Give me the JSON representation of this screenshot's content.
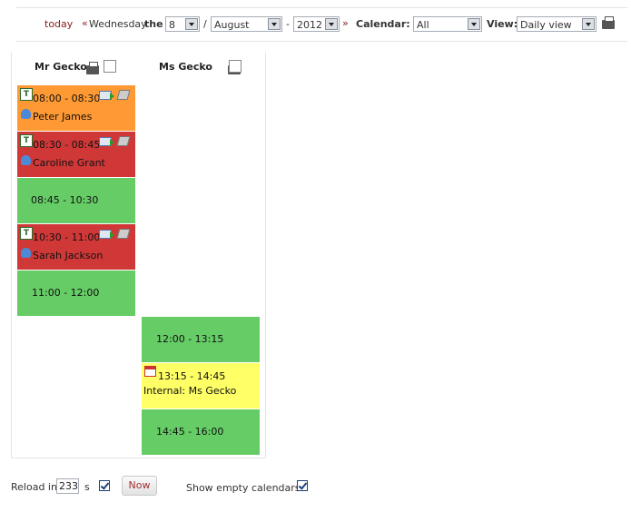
{
  "topbar": {
    "today": "today",
    "prev_arrow": "«",
    "weekday": "Wednesday",
    "the": "the",
    "day": "8",
    "slash": "/",
    "month": "August",
    "dash": "-",
    "year": "2012",
    "next_arrow": "»",
    "calendar_label": "Calendar:",
    "calendar_value": "All",
    "view_label": "View:",
    "view_value": "Daily view"
  },
  "columns": [
    {
      "name": "Mr Gecko",
      "slots": [
        {
          "time": "08:00 - 08:30",
          "patient": "Peter James",
          "status": "booked-orange"
        },
        {
          "time": "08:30 - 08:45",
          "patient": "Caroline Grant",
          "status": "booked-red"
        },
        {
          "time": "08:45 - 10:30",
          "status": "free"
        },
        {
          "time": "10:30 - 11:00",
          "patient": "Sarah Jackson",
          "status": "booked-red"
        },
        {
          "time": "11:00 - 12:00",
          "status": "free"
        }
      ]
    },
    {
      "name": "Ms Gecko",
      "slots": [
        {
          "time": "12:00 - 13:15",
          "status": "free"
        },
        {
          "time": "13:15 - 14:45",
          "note": "Internal: Ms Gecko",
          "status": "internal"
        },
        {
          "time": "14:45 - 16:00",
          "status": "free"
        }
      ]
    }
  ],
  "footer": {
    "reload_label": "Reload in",
    "reload_seconds": "233",
    "seconds_unit": "s",
    "now_button": "Now",
    "show_empty_label": "Show empty calendars?"
  },
  "colors": {
    "free": "#66cc66",
    "booked_orange": "#ff9933",
    "booked_red": "#d03838",
    "internal": "#ffff66",
    "link": "#8b1a1a"
  }
}
